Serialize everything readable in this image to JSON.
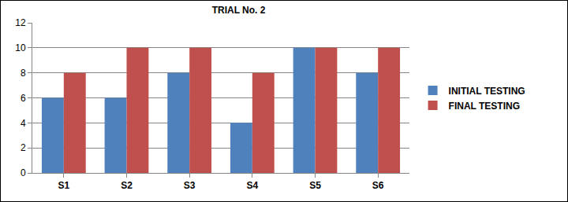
{
  "chart_data": {
    "type": "bar",
    "title": "TRIAL No. 2",
    "categories": [
      "S1",
      "S2",
      "S3",
      "S4",
      "S5",
      "S6"
    ],
    "series": [
      {
        "name": "INITIAL TESTING",
        "color": "#4f81bd",
        "values": [
          6,
          6,
          8,
          4,
          10,
          8
        ]
      },
      {
        "name": "FINAL TESTING",
        "color": "#c0504d",
        "values": [
          8,
          10,
          10,
          8,
          10,
          10
        ]
      }
    ],
    "ylim": [
      0,
      12
    ],
    "yticks": [
      0,
      2,
      4,
      6,
      8,
      10,
      12
    ],
    "grid": true,
    "legend": "right"
  }
}
